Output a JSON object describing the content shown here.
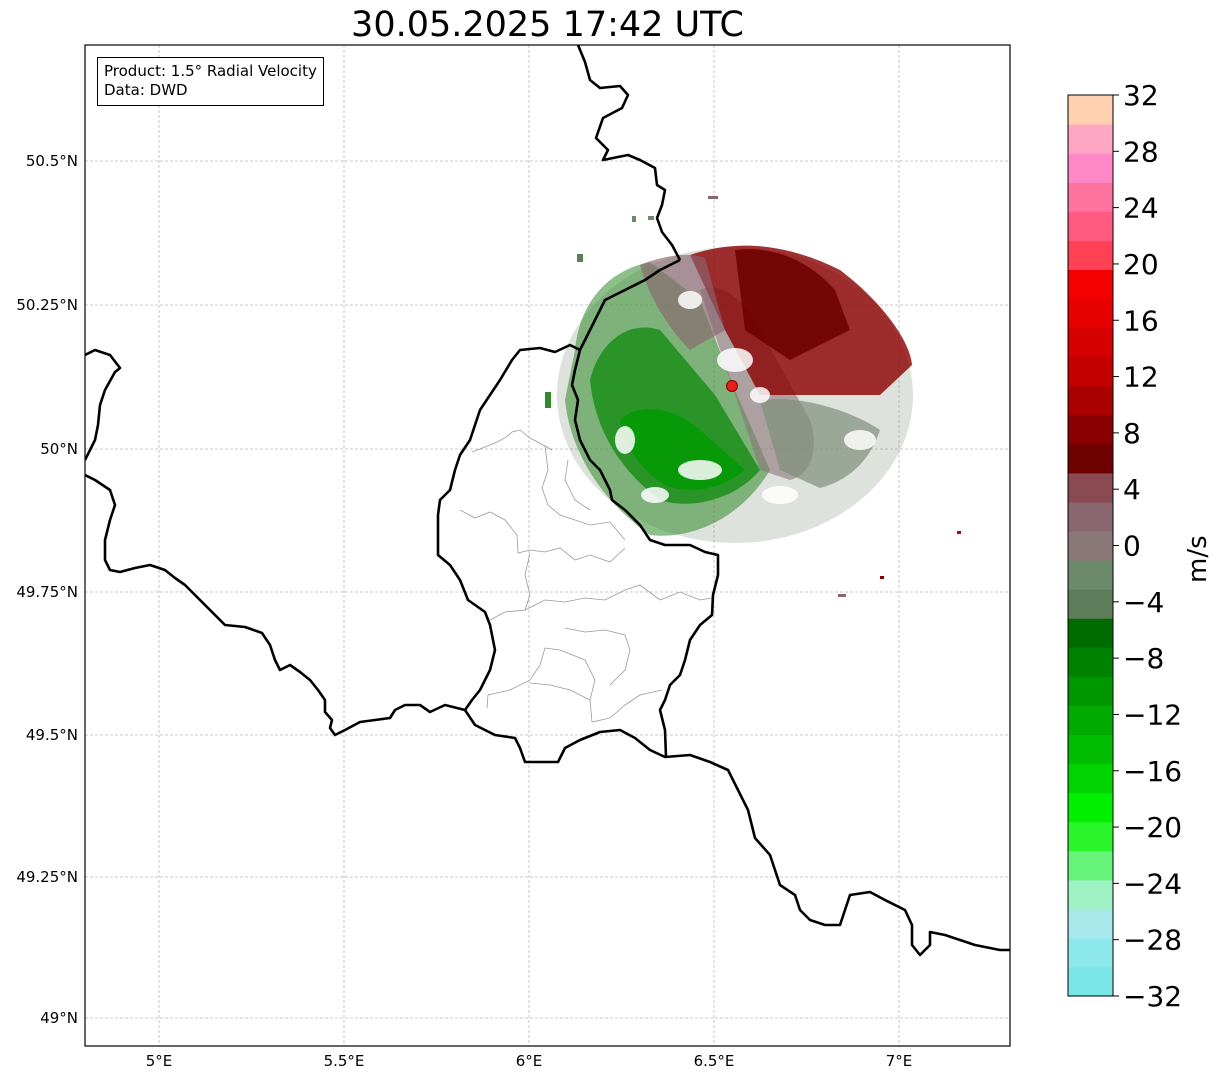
{
  "title": "30.05.2025 17:42 UTC",
  "info_box": {
    "product": "Product: 1.5° Radial Velocity",
    "data": "Data: DWD"
  },
  "map": {
    "lon_range": [
      4.8,
      7.3
    ],
    "lat_range": [
      48.95,
      50.7
    ],
    "lon_ticks": [
      "5°E",
      "5.5°E",
      "6°E",
      "6.5°E",
      "7°E"
    ],
    "lat_ticks": [
      "50.5°N",
      "50.25°N",
      "50°N",
      "49.75°N",
      "49.5°N",
      "49.25°N",
      "49°N"
    ],
    "gridlines": true,
    "radar_site": {
      "lon": 6.548,
      "lat": 50.11,
      "color": "#e8201c"
    }
  },
  "colorbar": {
    "label": "m/s",
    "range": [
      -32,
      32
    ],
    "tick_labels": [
      "32",
      "28",
      "24",
      "20",
      "16",
      "12",
      "8",
      "4",
      "0",
      "−4",
      "−8",
      "−12",
      "−16",
      "−20",
      "−24",
      "−28",
      "−32"
    ],
    "colors_bottom_to_top": [
      "#7ae6e8",
      "#8ce8ea",
      "#a8e8ea",
      "#9ef2c4",
      "#66f57a",
      "#2af42a",
      "#00f000",
      "#00d400",
      "#00bc00",
      "#00aa00",
      "#009600",
      "#008200",
      "#006c00",
      "#5e7d5a",
      "#6a8a6a",
      "#8a7878",
      "#8a6670",
      "#8a4a52",
      "#6e0000",
      "#8a0000",
      "#aa0000",
      "#c20000",
      "#d60000",
      "#e60000",
      "#f50000",
      "#ff4055",
      "#ff5a80",
      "#ff73a0",
      "#ff88c8",
      "#ffa6c4",
      "#ffd1b0"
    ]
  }
}
